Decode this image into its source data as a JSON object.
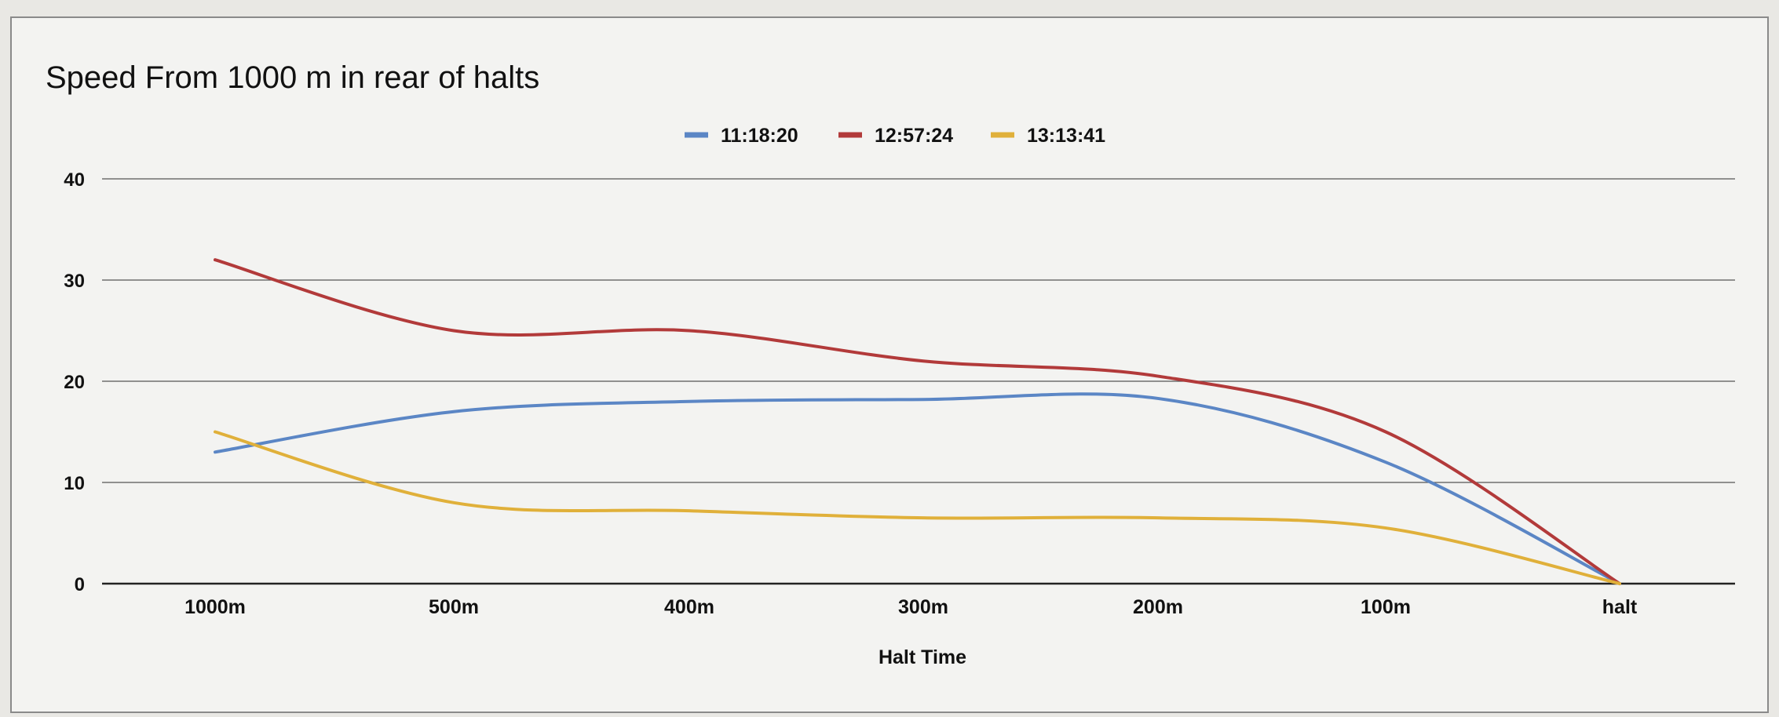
{
  "chart_data": {
    "type": "line",
    "title": "Speed From 1000 m in rear of halts",
    "xlabel": "Halt Time",
    "ylabel": "",
    "categories": [
      "1000m",
      "500m",
      "400m",
      "300m",
      "200m",
      "100m",
      "halt"
    ],
    "ylim": [
      0,
      40
    ],
    "yticks": [
      0,
      10,
      20,
      30,
      40
    ],
    "grid": true,
    "legend_position": "top",
    "series": [
      {
        "name": "11:18:20",
        "color": "#5b86c5",
        "values": [
          13,
          17,
          18,
          18.2,
          18.3,
          12,
          0
        ]
      },
      {
        "name": "12:57:24",
        "color": "#b23a3a",
        "values": [
          32,
          25,
          25,
          22,
          20.5,
          15,
          0
        ]
      },
      {
        "name": "13:13:41",
        "color": "#e0b03a",
        "values": [
          15,
          8,
          7.2,
          6.5,
          6.5,
          5.5,
          0
        ]
      }
    ]
  }
}
